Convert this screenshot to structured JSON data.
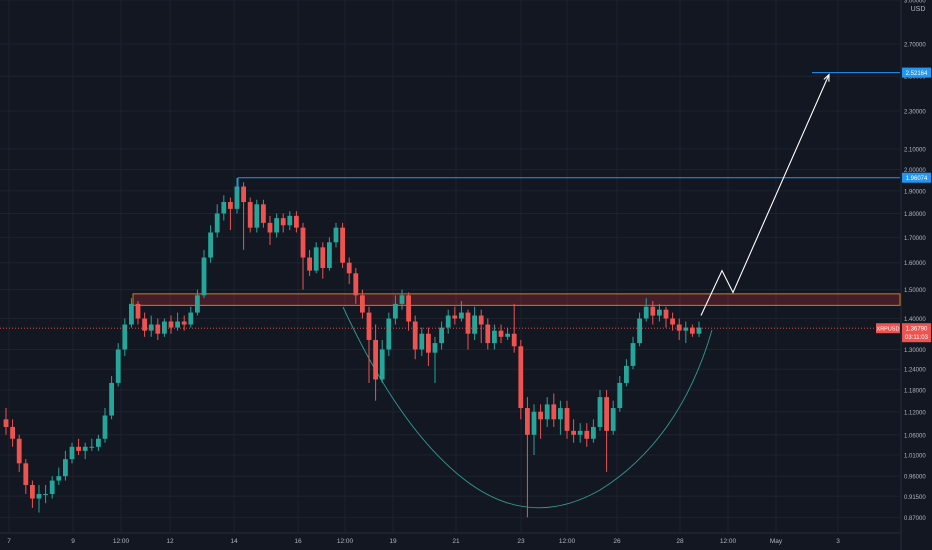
{
  "chart_data": {
    "type": "candlestick",
    "symbol_tag": "XRPUSD",
    "currency": "USD",
    "last_price": "1.36790",
    "countdown": "03:11:03",
    "target_label": "2.52164",
    "resistance_label": "1.96074",
    "y_scale": "log",
    "ylim": [
      0.84,
      3.0
    ],
    "y_ticks": [
      "3.00000",
      "2.70000",
      "2.50000",
      "2.30000",
      "2.10000",
      "2.00000",
      "1.90000",
      "1.80000",
      "1.70000",
      "1.60000",
      "1.50000",
      "1.40000",
      "1.30000",
      "1.24000",
      "1.18000",
      "1.12000",
      "1.06000",
      "1.01000",
      "0.96000",
      "0.91500",
      "0.87000"
    ],
    "x_ticks": [
      "7",
      "9",
      "12:00",
      "12",
      "14",
      "16",
      "12:00",
      "19",
      "21",
      "23",
      "12:00",
      "26",
      "28",
      "12:00",
      "May",
      "3"
    ],
    "candles": [
      [
        1.1,
        1.08,
        1.13,
        1.06
      ],
      [
        1.08,
        1.05,
        1.1,
        1.03
      ],
      [
        1.05,
        0.99,
        1.06,
        0.97
      ],
      [
        0.99,
        0.94,
        1.0,
        0.92
      ],
      [
        0.94,
        0.91,
        0.95,
        0.89
      ],
      [
        0.91,
        0.92,
        0.94,
        0.88
      ],
      [
        0.92,
        0.92,
        0.94,
        0.9
      ],
      [
        0.92,
        0.95,
        0.96,
        0.91
      ],
      [
        0.95,
        0.96,
        0.98,
        0.94
      ],
      [
        0.96,
        1.0,
        1.02,
        0.95
      ],
      [
        1.0,
        1.03,
        1.04,
        0.99
      ],
      [
        1.03,
        1.02,
        1.05,
        1.01
      ],
      [
        1.02,
        1.03,
        1.04,
        1.0
      ],
      [
        1.03,
        1.03,
        1.05,
        1.02
      ],
      [
        1.03,
        1.05,
        1.06,
        1.02
      ],
      [
        1.05,
        1.11,
        1.13,
        1.04
      ],
      [
        1.11,
        1.2,
        1.22,
        1.1
      ],
      [
        1.2,
        1.3,
        1.32,
        1.19
      ],
      [
        1.3,
        1.38,
        1.4,
        1.28
      ],
      [
        1.38,
        1.45,
        1.47,
        1.37
      ],
      [
        1.45,
        1.4,
        1.46,
        1.38
      ],
      [
        1.4,
        1.36,
        1.42,
        1.34
      ],
      [
        1.36,
        1.38,
        1.41,
        1.34
      ],
      [
        1.38,
        1.35,
        1.4,
        1.33
      ],
      [
        1.35,
        1.39,
        1.4,
        1.34
      ],
      [
        1.39,
        1.37,
        1.41,
        1.35
      ],
      [
        1.37,
        1.39,
        1.42,
        1.36
      ],
      [
        1.39,
        1.38,
        1.41,
        1.36
      ],
      [
        1.38,
        1.42,
        1.44,
        1.37
      ],
      [
        1.42,
        1.48,
        1.5,
        1.41
      ],
      [
        1.48,
        1.62,
        1.65,
        1.47
      ],
      [
        1.62,
        1.72,
        1.75,
        1.6
      ],
      [
        1.72,
        1.8,
        1.84,
        1.7
      ],
      [
        1.8,
        1.85,
        1.88,
        1.77
      ],
      [
        1.85,
        1.82,
        1.87,
        1.73
      ],
      [
        1.82,
        1.92,
        1.96,
        1.8
      ],
      [
        1.92,
        1.85,
        1.94,
        1.65
      ],
      [
        1.85,
        1.74,
        1.87,
        1.72
      ],
      [
        1.74,
        1.84,
        1.86,
        1.72
      ],
      [
        1.84,
        1.76,
        1.86,
        1.74
      ],
      [
        1.76,
        1.72,
        1.79,
        1.67
      ],
      [
        1.72,
        1.78,
        1.8,
        1.7
      ],
      [
        1.78,
        1.75,
        1.8,
        1.72
      ],
      [
        1.75,
        1.79,
        1.81,
        1.73
      ],
      [
        1.79,
        1.74,
        1.81,
        1.72
      ],
      [
        1.74,
        1.62,
        1.76,
        1.5
      ],
      [
        1.62,
        1.57,
        1.65,
        1.55
      ],
      [
        1.57,
        1.66,
        1.68,
        1.56
      ],
      [
        1.66,
        1.58,
        1.68,
        1.54
      ],
      [
        1.58,
        1.68,
        1.7,
        1.57
      ],
      [
        1.68,
        1.74,
        1.76,
        1.66
      ],
      [
        1.74,
        1.6,
        1.76,
        1.58
      ],
      [
        1.6,
        1.56,
        1.62,
        1.52
      ],
      [
        1.56,
        1.48,
        1.58,
        1.45
      ],
      [
        1.48,
        1.42,
        1.5,
        1.4
      ],
      [
        1.42,
        1.33,
        1.44,
        1.2
      ],
      [
        1.33,
        1.21,
        1.38,
        1.15
      ],
      [
        1.21,
        1.3,
        1.33,
        1.2
      ],
      [
        1.3,
        1.4,
        1.42,
        1.28
      ],
      [
        1.4,
        1.45,
        1.48,
        1.38
      ],
      [
        1.45,
        1.48,
        1.5,
        1.43
      ],
      [
        1.48,
        1.39,
        1.49,
        1.36
      ],
      [
        1.39,
        1.3,
        1.41,
        1.27
      ],
      [
        1.3,
        1.35,
        1.37,
        1.28
      ],
      [
        1.35,
        1.29,
        1.37,
        1.25
      ],
      [
        1.29,
        1.32,
        1.34,
        1.2
      ],
      [
        1.32,
        1.37,
        1.39,
        1.3
      ],
      [
        1.37,
        1.41,
        1.43,
        1.35
      ],
      [
        1.41,
        1.4,
        1.44,
        1.38
      ],
      [
        1.4,
        1.42,
        1.46,
        1.39
      ],
      [
        1.42,
        1.35,
        1.43,
        1.3
      ],
      [
        1.35,
        1.41,
        1.44,
        1.33
      ],
      [
        1.41,
        1.38,
        1.43,
        1.32
      ],
      [
        1.38,
        1.32,
        1.4,
        1.3
      ],
      [
        1.32,
        1.36,
        1.38,
        1.3
      ],
      [
        1.36,
        1.34,
        1.38,
        1.32
      ],
      [
        1.34,
        1.35,
        1.37,
        1.33
      ],
      [
        1.35,
        1.31,
        1.45,
        1.29
      ],
      [
        1.31,
        1.13,
        1.33,
        1.1
      ],
      [
        1.13,
        1.06,
        1.16,
        0.87
      ],
      [
        1.06,
        1.12,
        1.14,
        1.01
      ],
      [
        1.12,
        1.1,
        1.14,
        1.05
      ],
      [
        1.1,
        1.14,
        1.16,
        1.08
      ],
      [
        1.14,
        1.1,
        1.17,
        1.08
      ],
      [
        1.1,
        1.13,
        1.15,
        1.06
      ],
      [
        1.13,
        1.07,
        1.15,
        1.05
      ],
      [
        1.07,
        1.06,
        1.1,
        1.04
      ],
      [
        1.06,
        1.07,
        1.09,
        1.04
      ],
      [
        1.07,
        1.05,
        1.09,
        1.03
      ],
      [
        1.05,
        1.08,
        1.1,
        1.04
      ],
      [
        1.08,
        1.16,
        1.18,
        1.07
      ],
      [
        1.16,
        1.07,
        1.18,
        0.97
      ],
      [
        1.07,
        1.13,
        1.15,
        1.06
      ],
      [
        1.13,
        1.2,
        1.22,
        1.12
      ],
      [
        1.2,
        1.25,
        1.27,
        1.19
      ],
      [
        1.25,
        1.32,
        1.34,
        1.24
      ],
      [
        1.32,
        1.4,
        1.42,
        1.31
      ],
      [
        1.4,
        1.44,
        1.47,
        1.39
      ],
      [
        1.44,
        1.41,
        1.46,
        1.38
      ],
      [
        1.41,
        1.43,
        1.45,
        1.39
      ],
      [
        1.43,
        1.4,
        1.44,
        1.37
      ],
      [
        1.4,
        1.38,
        1.42,
        1.36
      ],
      [
        1.38,
        1.36,
        1.4,
        1.33
      ],
      [
        1.36,
        1.37,
        1.39,
        1.32
      ],
      [
        1.37,
        1.35,
        1.38,
        1.34
      ],
      [
        1.35,
        1.37,
        1.39,
        1.34
      ]
    ],
    "box_zone": [
      1.445,
      1.485
    ],
    "pattern": "cup",
    "projection_path": [
      [
        1.41,
        0
      ],
      [
        1.57,
        3.5
      ],
      [
        1.49,
        6
      ],
      [
        2.52164,
        20
      ]
    ]
  }
}
